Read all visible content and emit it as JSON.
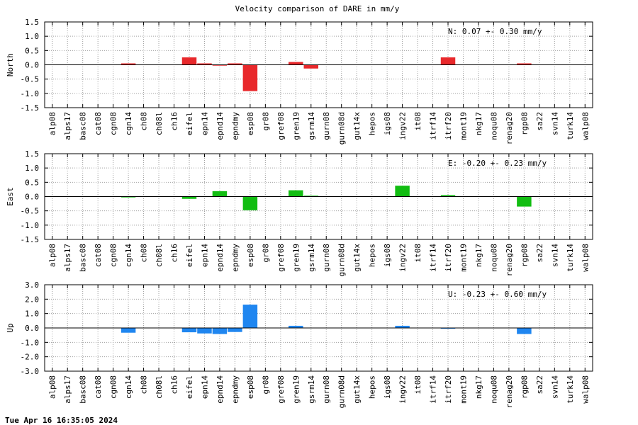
{
  "page": {
    "title": "Velocity comparison of DARE in mm/y",
    "timestamp": "Tue Apr 16 16:35:05 2024"
  },
  "chart_data": [
    {
      "type": "bar",
      "panel": "north",
      "ylabel": "North",
      "ylim": [
        -1.5,
        1.5
      ],
      "yticks": [
        -1.5,
        -1.0,
        -0.5,
        0.0,
        0.5,
        1.0,
        1.5
      ],
      "ytick_labels": [
        "-1.5",
        "-1.0",
        "-0.5",
        "0.0",
        "0.5",
        "1.0",
        "1.5"
      ],
      "grid": true,
      "color": "#e8282b",
      "annotation": "N:   0.07 +-  0.30 mm/y",
      "categories": [
        "alp08",
        "alps17",
        "basc08",
        "cat08",
        "cgn08",
        "cgn14",
        "ch08",
        "ch08l",
        "ch16",
        "eifel",
        "epn14",
        "epnd14",
        "epndmy",
        "esp08",
        "gr08",
        "gref08",
        "gren19",
        "gsrm14",
        "gurn08",
        "gurn08d",
        "gut14x",
        "hepos",
        "igs08",
        "ingv22",
        "it08",
        "itrf14",
        "itrf20",
        "mont19",
        "nkg17",
        "noqu08",
        "renag20",
        "rgp08",
        "sa22",
        "svn14",
        "turk14",
        "walp08"
      ],
      "values": [
        0,
        0,
        0,
        0,
        0,
        0.05,
        0,
        0,
        0,
        0.26,
        0.05,
        -0.03,
        0.05,
        -0.92,
        0,
        0,
        0.1,
        -0.13,
        0,
        0,
        0,
        0,
        0,
        0,
        0,
        0,
        0.26,
        0,
        0,
        0,
        0,
        0.05,
        0,
        0,
        0,
        0
      ]
    },
    {
      "type": "bar",
      "panel": "east",
      "ylabel": "East",
      "ylim": [
        -1.5,
        1.5
      ],
      "yticks": [
        -1.5,
        -1.0,
        -0.5,
        0.0,
        0.5,
        1.0,
        1.5
      ],
      "ytick_labels": [
        "-1.5",
        "-1.0",
        "-0.5",
        "0.0",
        "0.5",
        "1.0",
        "1.5"
      ],
      "grid": true,
      "color": "#12bd12",
      "annotation": "E:  -0.20 +-  0.23 mm/y",
      "categories": [
        "alp08",
        "alps17",
        "basc08",
        "cat08",
        "cgn08",
        "cgn14",
        "ch08",
        "ch08l",
        "ch16",
        "eifel",
        "epn14",
        "epnd14",
        "epndmy",
        "esp08",
        "gr08",
        "gref08",
        "gren19",
        "gsrm14",
        "gurn08",
        "gurn08d",
        "gut14x",
        "hepos",
        "igs08",
        "ingv22",
        "it08",
        "itrf14",
        "itrf20",
        "mont19",
        "nkg17",
        "noqu08",
        "renag20",
        "rgp08",
        "sa22",
        "svn14",
        "turk14",
        "walp08"
      ],
      "values": [
        0,
        0,
        0,
        0,
        0,
        -0.03,
        0,
        0,
        0,
        -0.08,
        0,
        0.19,
        0,
        -0.48,
        0,
        0,
        0.22,
        0.03,
        0,
        0,
        0,
        0,
        0,
        0.38,
        0,
        0,
        0.05,
        0,
        0,
        0,
        0,
        -0.35,
        0,
        0,
        0,
        0
      ]
    },
    {
      "type": "bar",
      "panel": "up",
      "ylabel": "Up",
      "ylim": [
        -3.0,
        3.0
      ],
      "yticks": [
        -3.0,
        -2.0,
        -1.0,
        0.0,
        1.0,
        2.0,
        3.0
      ],
      "ytick_labels": [
        "-3.0",
        "-2.0",
        "-1.0",
        "0.0",
        "1.0",
        "2.0",
        "3.0"
      ],
      "grid": true,
      "color": "#1f86f0",
      "annotation": "U:  -0.23 +-  0.60 mm/y",
      "categories": [
        "alp08",
        "alps17",
        "basc08",
        "cat08",
        "cgn08",
        "cgn14",
        "ch08",
        "ch08l",
        "ch16",
        "eifel",
        "epn14",
        "epnd14",
        "epndmy",
        "esp08",
        "gr08",
        "gref08",
        "gren19",
        "gsrm14",
        "gurn08",
        "gurn08d",
        "gut14x",
        "hepos",
        "igs08",
        "ingv22",
        "it08",
        "itrf14",
        "itrf20",
        "mont19",
        "nkg17",
        "noqu08",
        "renag20",
        "rgp08",
        "sa22",
        "svn14",
        "turk14",
        "walp08"
      ],
      "values": [
        0,
        0,
        0,
        0,
        0,
        -0.33,
        0,
        0,
        0,
        -0.3,
        -0.38,
        -0.42,
        -0.28,
        1.62,
        0,
        0,
        0.15,
        0,
        0,
        0,
        0,
        0,
        0,
        0.15,
        0,
        0,
        -0.05,
        0,
        0,
        0,
        0,
        -0.42,
        0,
        0,
        0,
        0
      ]
    }
  ]
}
